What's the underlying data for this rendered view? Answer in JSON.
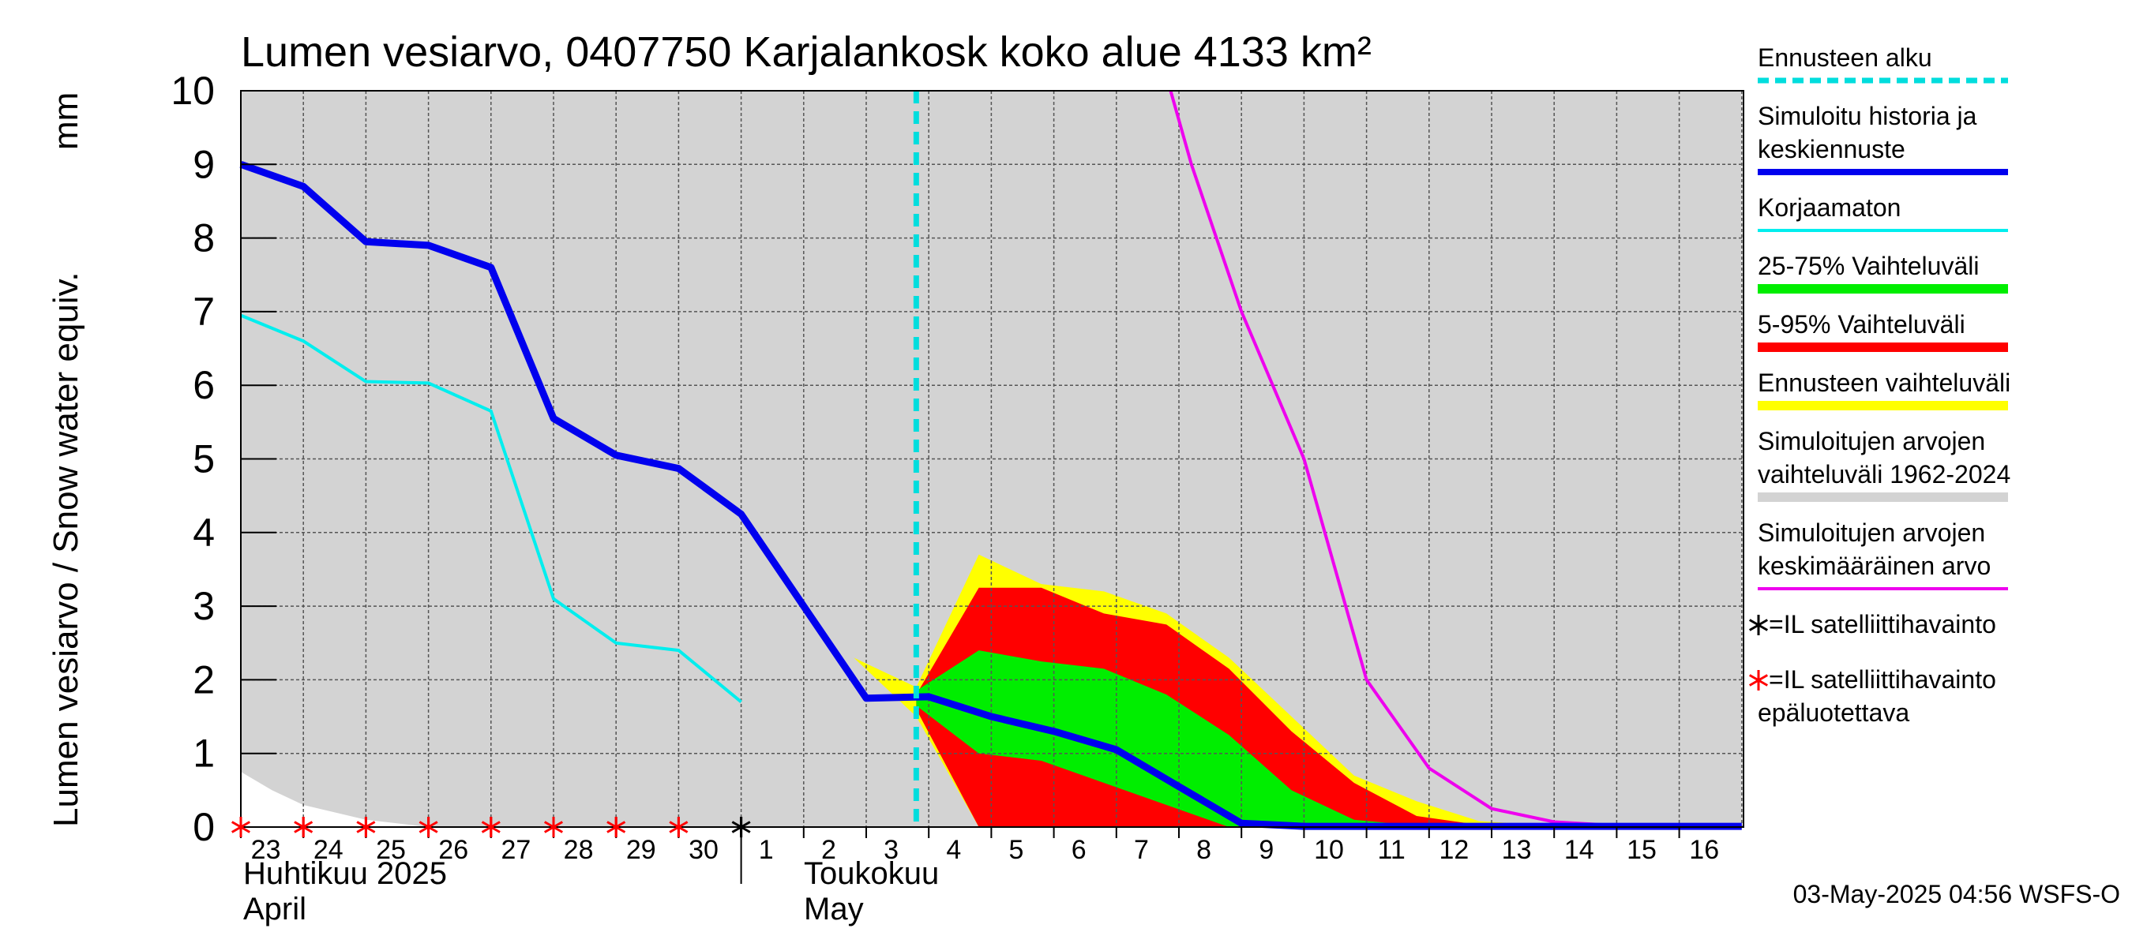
{
  "chart_data": {
    "type": "area",
    "title": "Lumen vesiarvo, 0407750 Karjalankosk koko alue 4133 km²",
    "ylabel_line1": "Lumen vesiarvo / Snow water equiv.",
    "ylabel_line2": "mm",
    "ylim": [
      0,
      10
    ],
    "yticks": [
      "0",
      "1",
      "2",
      "3",
      "4",
      "5",
      "6",
      "7",
      "8",
      "9",
      "10"
    ],
    "x_dates": [
      "23",
      "24",
      "25",
      "26",
      "27",
      "28",
      "29",
      "30",
      "1",
      "2",
      "3",
      "4",
      "5",
      "6",
      "7",
      "8",
      "9",
      "10",
      "11",
      "12",
      "13",
      "14",
      "15",
      "16"
    ],
    "month_labels": {
      "april_fi": "Huhtikuu 2025",
      "april_en": "April",
      "may_fi": "Toukokuu",
      "may_en": "May"
    },
    "forecast_start": 10.8,
    "grid": true,
    "legend_position": "right",
    "series": {
      "historical_range_upper": [
        [
          0,
          10
        ],
        [
          24,
          10
        ]
      ],
      "historical_range_lower": [
        [
          0,
          0.75
        ],
        [
          0.5,
          0.5
        ],
        [
          1,
          0.3
        ],
        [
          2,
          0.1
        ],
        [
          3,
          0.0
        ],
        [
          24,
          0.0
        ]
      ],
      "climatological_mean": [
        [
          14.8,
          10.2
        ],
        [
          15.2,
          9.0
        ],
        [
          16,
          7.0
        ],
        [
          17,
          5.0
        ],
        [
          18,
          2.0
        ],
        [
          19,
          0.8
        ],
        [
          20,
          0.25
        ],
        [
          21,
          0.07
        ],
        [
          22,
          0.02
        ],
        [
          23,
          0.01
        ],
        [
          24,
          0.01
        ]
      ],
      "forecast_range_upper": [
        [
          9.8,
          2.3
        ],
        [
          10.8,
          1.9
        ],
        [
          11.8,
          3.7
        ],
        [
          12.8,
          3.3
        ],
        [
          13.8,
          3.2
        ],
        [
          14.8,
          2.9
        ],
        [
          15.8,
          2.3
        ],
        [
          16.8,
          1.5
        ],
        [
          17.8,
          0.7
        ],
        [
          18.8,
          0.35
        ],
        [
          19.8,
          0.08
        ],
        [
          20.8,
          0.03
        ],
        [
          21.8,
          0.02
        ],
        [
          24,
          0.02
        ]
      ],
      "forecast_range_lower": [
        [
          9.8,
          2.3
        ],
        [
          10.8,
          1.5
        ],
        [
          11.8,
          0.0
        ],
        [
          24,
          0.0
        ]
      ],
      "p5_95_upper": [
        [
          10.8,
          1.8
        ],
        [
          11.8,
          3.25
        ],
        [
          12.8,
          3.25
        ],
        [
          13.8,
          2.9
        ],
        [
          14.8,
          2.75
        ],
        [
          15.8,
          2.15
        ],
        [
          16.8,
          1.3
        ],
        [
          17.8,
          0.6
        ],
        [
          18.8,
          0.15
        ],
        [
          19.8,
          0.03
        ],
        [
          24,
          0.02
        ]
      ],
      "p5_95_lower": [
        [
          10.8,
          1.6
        ],
        [
          11.8,
          0.0
        ],
        [
          24,
          0.0
        ]
      ],
      "p25_75_upper": [
        [
          10.8,
          1.85
        ],
        [
          11.8,
          2.4
        ],
        [
          12.8,
          2.25
        ],
        [
          13.8,
          2.15
        ],
        [
          14.8,
          1.8
        ],
        [
          15.8,
          1.25
        ],
        [
          16.8,
          0.5
        ],
        [
          17.8,
          0.1
        ],
        [
          18.8,
          0.02
        ],
        [
          24,
          0.01
        ]
      ],
      "p25_75_lower": [
        [
          10.8,
          1.65
        ],
        [
          11.8,
          1.0
        ],
        [
          12.8,
          0.9
        ],
        [
          13.8,
          0.6
        ],
        [
          14.8,
          0.3
        ],
        [
          15.8,
          0.0
        ],
        [
          24,
          0.0
        ]
      ],
      "uncorrected": [
        [
          0,
          6.95
        ],
        [
          1,
          6.6
        ],
        [
          2,
          6.05
        ],
        [
          3,
          6.03
        ],
        [
          4,
          5.65
        ],
        [
          5,
          3.1
        ],
        [
          6,
          2.5
        ],
        [
          7,
          2.4
        ],
        [
          8,
          1.7
        ]
      ],
      "simulated": [
        [
          0,
          9.0
        ],
        [
          1,
          8.7
        ],
        [
          2,
          7.95
        ],
        [
          3,
          7.9
        ],
        [
          4,
          7.6
        ],
        [
          5,
          5.55
        ],
        [
          6,
          5.05
        ],
        [
          7,
          4.87
        ],
        [
          8,
          4.25
        ],
        [
          9,
          3.0
        ],
        [
          10,
          1.75
        ],
        [
          11,
          1.77
        ],
        [
          12,
          1.5
        ],
        [
          13,
          1.3
        ],
        [
          14,
          1.05
        ],
        [
          15,
          0.55
        ],
        [
          16,
          0.05
        ],
        [
          17,
          0.01
        ],
        [
          24,
          0.01
        ]
      ],
      "satellite_ok": [
        8
      ],
      "satellite_unreliable": [
        0,
        1,
        2,
        3,
        4,
        5,
        6,
        7
      ]
    },
    "colors": {
      "historical_range": "#d3d3d3",
      "forecast_range": "#ffff00",
      "p5_95": "#ff0000",
      "p25_75": "#00ee00",
      "simulated": "#0000ee",
      "uncorrected": "#00eeee",
      "climatological_mean": "#ee00ee",
      "forecast_start": "#00dddd",
      "grid": "#555555"
    }
  },
  "legend": [
    {
      "label1": "Ennusteen alku",
      "label2": "",
      "color": "#00dddd",
      "style": "dashed",
      "width": 7
    },
    {
      "label1": "Simuloitu historia ja",
      "label2": "keskiennuste",
      "color": "#0000ee",
      "style": "solid",
      "width": 8
    },
    {
      "label1": "Korjaamaton",
      "label2": "",
      "color": "#00eeee",
      "style": "solid",
      "width": 4
    },
    {
      "label1": "25-75% Vaihteluväli",
      "label2": "",
      "color": "#00ee00",
      "style": "solid",
      "width": 12
    },
    {
      "label1": "5-95% Vaihteluväli",
      "label2": "",
      "color": "#ff0000",
      "style": "solid",
      "width": 12
    },
    {
      "label1": "Ennusteen vaihteluväli",
      "label2": "",
      "color": "#ffff00",
      "style": "solid",
      "width": 12
    },
    {
      "label1": "Simuloitujen arvojen",
      "label2": "vaihteluväli 1962-2024",
      "color": "#d3d3d3",
      "style": "solid",
      "width": 12
    },
    {
      "label1": "Simuloitujen arvojen",
      "label2": "keskimääräinen arvo",
      "color": "#ee00ee",
      "style": "solid",
      "width": 4
    },
    {
      "label1": "=IL satelliittihavainto",
      "label2": "",
      "marker": "*",
      "markerColor": "#000000"
    },
    {
      "label1": "=IL satelliittihavainto",
      "label2": "epäluotettava",
      "marker": "*",
      "markerColor": "#ff0000"
    }
  ],
  "footer": "03-May-2025 04:56 WSFS-O"
}
